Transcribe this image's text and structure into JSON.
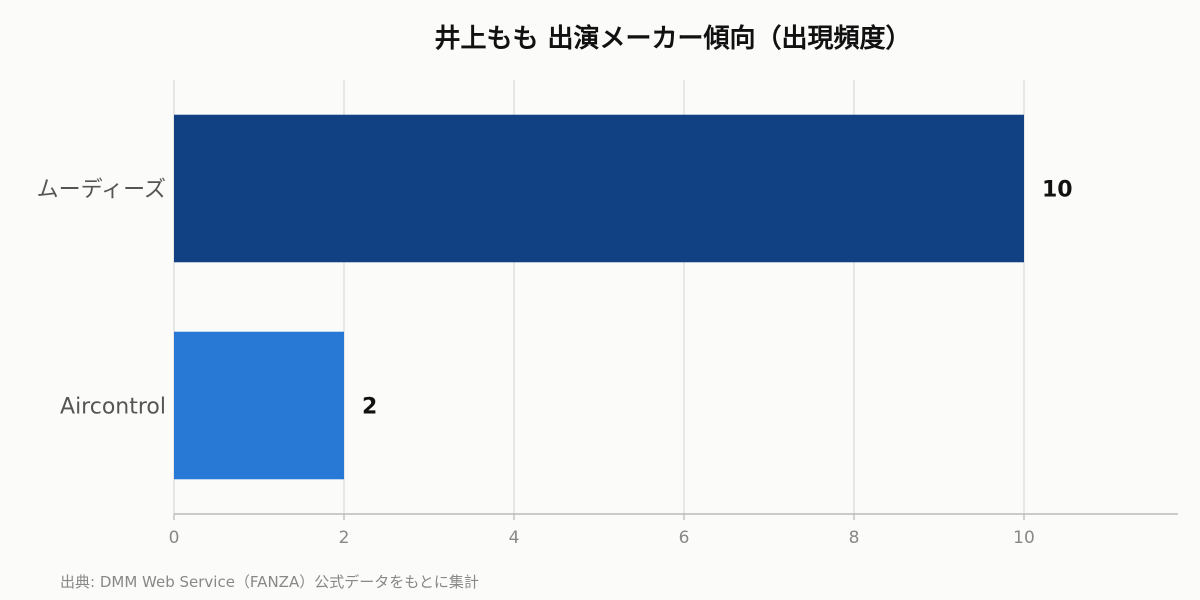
{
  "chart_data": {
    "type": "bar",
    "orientation": "horizontal",
    "title": "井上もも 出演メーカー傾向（出現頻度）",
    "categories": [
      "ムーディーズ",
      "Aircontrol"
    ],
    "values": [
      10,
      2
    ],
    "colors": [
      "#114182",
      "#2878d6"
    ],
    "xlim": [
      0,
      11.8
    ],
    "xticks": [
      0,
      2,
      4,
      6,
      8,
      10
    ],
    "xlabel": "",
    "ylabel": "",
    "grid": "vertical",
    "legend": "none"
  },
  "source": "出典: DMM Web Service（FANZA）公式データをもとに集計"
}
